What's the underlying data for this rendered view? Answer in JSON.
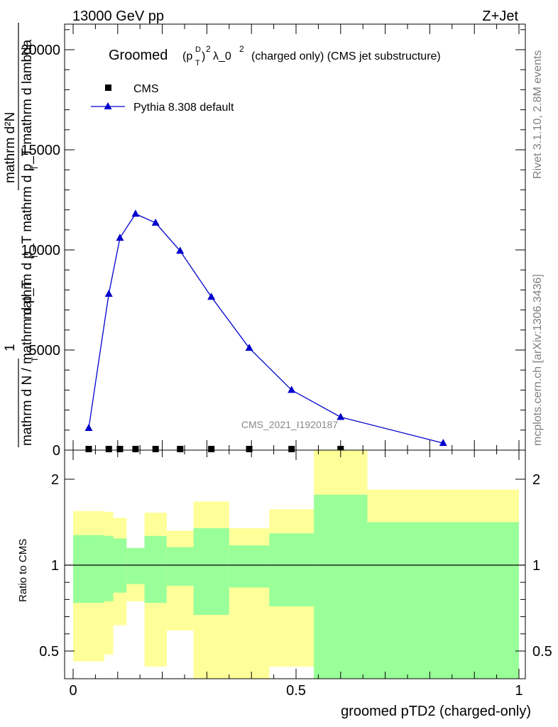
{
  "header": {
    "energy_label": "13000 GeV pp",
    "process_label": "Z+Jet"
  },
  "side_labels": {
    "rivet": "Rivet 3.1.10,  2.8M events",
    "mcplots": "mcplots.cern.ch [arXiv:1306.3436]"
  },
  "watermark": "CMS_2021_I1920187",
  "chart_data": [
    {
      "type": "line",
      "title_main": "Groomed",
      "title_ptd_base": "(p",
      "title_ptd_sup": "D",
      "title_ptd_sub": "T",
      "title_ptd_close": ")",
      "title_sq": "2",
      "title_lambda": "λ_0",
      "title_lambda_sup": "2",
      "title_suffix": "(charged only) (CMS jet substructure)",
      "ylabel_top": "mathrm d²N",
      "ylabel_mid": "mathrm d p_T mathrm d p_T mathrm d lambda",
      "ylabel_sub": "T",
      "ylabel_sub2": "T",
      "ylabel_one": "1",
      "ylabel_bottom": "mathrm d N / mathrm d p_T",
      "ylabel_bottom_sub": "T",
      "ylim": [
        0,
        25000
      ],
      "xlim": [
        0,
        1
      ],
      "ytick_labels": [
        "0",
        "5000",
        "10000",
        "15000",
        "20000"
      ],
      "yticks": [
        0,
        5000,
        10000,
        15000,
        20000
      ],
      "legend": {
        "placement": "top-left",
        "entries": [
          "CMS",
          "Pythia 8.308 default"
        ]
      },
      "series": [
        {
          "name": "CMS",
          "marker": "square",
          "color": "#000000",
          "x": [
            0.035,
            0.08,
            0.105,
            0.14,
            0.185,
            0.24,
            0.31,
            0.395,
            0.49,
            0.6
          ],
          "y": [
            0,
            0,
            0,
            0,
            0,
            0,
            0,
            0,
            0,
            0
          ]
        },
        {
          "name": "Pythia 8.308 default",
          "marker": "triangle",
          "color": "#0000cc",
          "x": [
            0.035,
            0.08,
            0.105,
            0.14,
            0.185,
            0.24,
            0.31,
            0.395,
            0.49,
            0.6,
            0.83
          ],
          "y": [
            1100,
            7800,
            10600,
            11800,
            11350,
            9950,
            7650,
            5100,
            3000,
            1650,
            350
          ]
        }
      ]
    },
    {
      "type": "area",
      "ylabel": "Ratio to CMS",
      "xlabel": "groomed pTD2 (charged-only)",
      "xlim": [
        0,
        1
      ],
      "ylim": [
        0.35,
        2.25
      ],
      "xtick_labels": [
        "0",
        "0.5",
        "1"
      ],
      "xticks": [
        0,
        0.5,
        1
      ],
      "ytick_labels": [
        "0.5",
        "1",
        "2"
      ],
      "yticks": [
        0.5,
        1,
        2
      ],
      "reference_line": 1,
      "band_colors": {
        "outer": "#ffff99",
        "inner": "#99ff99"
      },
      "bins": [
        {
          "xlo": 0.0,
          "xhi": 0.07,
          "outer_lo": 0.44,
          "outer_hi": 1.63,
          "inner_lo": 0.78,
          "inner_hi": 1.35
        },
        {
          "xlo": 0.07,
          "xhi": 0.09,
          "outer_lo": 0.48,
          "outer_hi": 1.62,
          "inner_lo": 0.79,
          "inner_hi": 1.34
        },
        {
          "xlo": 0.09,
          "xhi": 0.12,
          "outer_lo": 0.65,
          "outer_hi": 1.55,
          "inner_lo": 0.84,
          "inner_hi": 1.31
        },
        {
          "xlo": 0.12,
          "xhi": 0.16,
          "outer_lo": 0.79,
          "outer_hi": 1.18,
          "inner_lo": 0.89,
          "inner_hi": 1.2
        },
        {
          "xlo": 0.16,
          "xhi": 0.21,
          "outer_lo": 0.41,
          "outer_hi": 1.61,
          "inner_lo": 0.78,
          "inner_hi": 1.34
        },
        {
          "xlo": 0.21,
          "xhi": 0.27,
          "outer_lo": 0.62,
          "outer_hi": 1.4,
          "inner_lo": 0.88,
          "inner_hi": 1.21
        },
        {
          "xlo": 0.27,
          "xhi": 0.35,
          "outer_lo": 0.0,
          "outer_hi": 1.74,
          "inner_lo": 0.71,
          "inner_hi": 1.43
        },
        {
          "xlo": 0.35,
          "xhi": 0.44,
          "outer_lo": 0.0,
          "outer_hi": 1.43,
          "inner_lo": 0.87,
          "inner_hi": 1.23
        },
        {
          "xlo": 0.44,
          "xhi": 0.54,
          "outer_lo": 0.41,
          "outer_hi": 1.65,
          "inner_lo": 0.76,
          "inner_hi": 1.37
        },
        {
          "xlo": 0.54,
          "xhi": 0.66,
          "outer_lo": 0.0,
          "outer_hi": 2.5,
          "inner_lo": 0.0,
          "inner_hi": 1.82
        },
        {
          "xlo": 0.66,
          "xhi": 1.0,
          "outer_lo": 0.61,
          "outer_hi": 1.88,
          "inner_lo": 0.0,
          "inner_hi": 1.5
        }
      ]
    }
  ]
}
